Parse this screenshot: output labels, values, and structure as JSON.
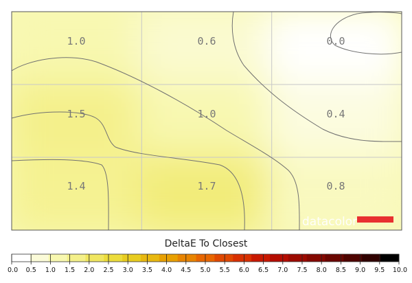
{
  "chart_data": {
    "type": "heatmap",
    "title": "",
    "rows": 3,
    "cols": 3,
    "values": [
      [
        1.0,
        0.6,
        0.0
      ],
      [
        1.5,
        1.0,
        0.4
      ],
      [
        1.4,
        1.7,
        0.8
      ]
    ],
    "labels": [
      [
        "1.0",
        "0.6",
        "0.0"
      ],
      [
        "1.5",
        "1.0",
        "0.4"
      ],
      [
        "1.4",
        "1.7",
        "0.8"
      ]
    ],
    "contour_levels": [
      0.5,
      1.0,
      1.5
    ],
    "colorbar": {
      "title": "DeltaE To Closest",
      "min": 0.0,
      "max": 10.0,
      "ticks": [
        "0.0",
        "0.5",
        "1.0",
        "1.5",
        "2.0",
        "2.5",
        "3.0",
        "3.5",
        "4.0",
        "4.5",
        "5.0",
        "5.5",
        "6.0",
        "6.5",
        "7.0",
        "7.5",
        "8.0",
        "8.5",
        "9.0",
        "9.5",
        "10.0"
      ],
      "colors": [
        "#ffffff",
        "#fbfbd8",
        "#f8f8b0",
        "#f4f08a",
        "#f0e660",
        "#ecdc3c",
        "#e8cc20",
        "#e8b810",
        "#e8a000",
        "#e88400",
        "#e86600",
        "#e04800",
        "#d83000",
        "#c81800",
        "#b40c00",
        "#9c0a00",
        "#840800",
        "#6a0600",
        "#4e0400",
        "#300200",
        "#000000"
      ]
    },
    "watermark": {
      "text": "datacolor",
      "bar_color": "#e83030"
    },
    "grid": true
  }
}
